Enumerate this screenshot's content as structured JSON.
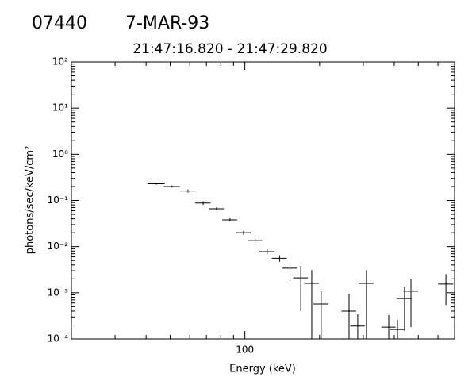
{
  "chart_data": {
    "type": "errorbar",
    "title": "07440",
    "date": "7-MAR-93",
    "subtitle": "21:47:16.820 - 21:47:29.820",
    "xlabel": "Energy (keV)",
    "ylabel": "photons/sec/keV/cm²",
    "xscale": "log",
    "yscale": "log",
    "xlim": [
      20,
      700
    ],
    "ylim": [
      0.0001,
      100
    ],
    "xticks": [
      100
    ],
    "xminorticks": [
      30,
      40,
      50,
      60,
      70,
      80,
      90,
      200,
      300,
      400,
      500,
      600
    ],
    "yticks": [
      {
        "value": 0.0001,
        "label": "10⁻⁴"
      },
      {
        "value": 0.001,
        "label": "10⁻³"
      },
      {
        "value": 0.01,
        "label": "10⁻²"
      },
      {
        "value": 0.1,
        "label": "10⁻¹"
      },
      {
        "value": 1,
        "label": "10⁰"
      },
      {
        "value": 10,
        "label": "10¹"
      },
      {
        "value": 100,
        "label": "10²"
      }
    ],
    "yminorticks": [
      0.0002,
      0.0003,
      0.0004,
      0.0005,
      0.0006,
      0.0007,
      0.0008,
      0.0009,
      0.002,
      0.003,
      0.004,
      0.005,
      0.006,
      0.007,
      0.008,
      0.009,
      0.02,
      0.03,
      0.04,
      0.05,
      0.06,
      0.07,
      0.08,
      0.09,
      0.2,
      0.3,
      0.4,
      0.5,
      0.6,
      0.7,
      0.8,
      0.9,
      2,
      3,
      4,
      5,
      6,
      7,
      8,
      9,
      20,
      30,
      40,
      50,
      60,
      70,
      80,
      90
    ],
    "color": "#000000",
    "x": [
      44,
      50.9,
      59,
      67.9,
      76.9,
      87.1,
      98.8,
      110,
      123,
      138,
      152,
      168,
      186,
      203,
      263,
      285,
      309,
      380,
      412,
      440,
      467,
      646
    ],
    "values": [
      0.23,
      0.2,
      0.16,
      0.088,
      0.066,
      0.038,
      0.02,
      0.0135,
      0.0078,
      0.0056,
      0.0034,
      0.0021,
      0.0016,
      0.00057,
      0.0004,
      0.00019,
      0.0016,
      0.00018,
      0.00016,
      0.00075,
      0.00108,
      0.00154
    ],
    "xerr": [
      3.5,
      3.8,
      4.3,
      4.8,
      5.4,
      6,
      6.8,
      7.5,
      8.5,
      9.5,
      10.5,
      11.5,
      12.5,
      14,
      18,
      19,
      21,
      25,
      27,
      30,
      32,
      45
    ],
    "yerr": [
      0.01,
      0.01,
      0.012,
      0.008,
      0.005,
      0.003,
      0.002,
      0.0015,
      0.001,
      0.0009,
      0.0016,
      0.0017,
      0.0015,
      0.0005,
      0.00055,
      0.00015,
      0.0015,
      0.00015,
      0.0001,
      0.0006,
      0.0009,
      0.001
    ]
  }
}
